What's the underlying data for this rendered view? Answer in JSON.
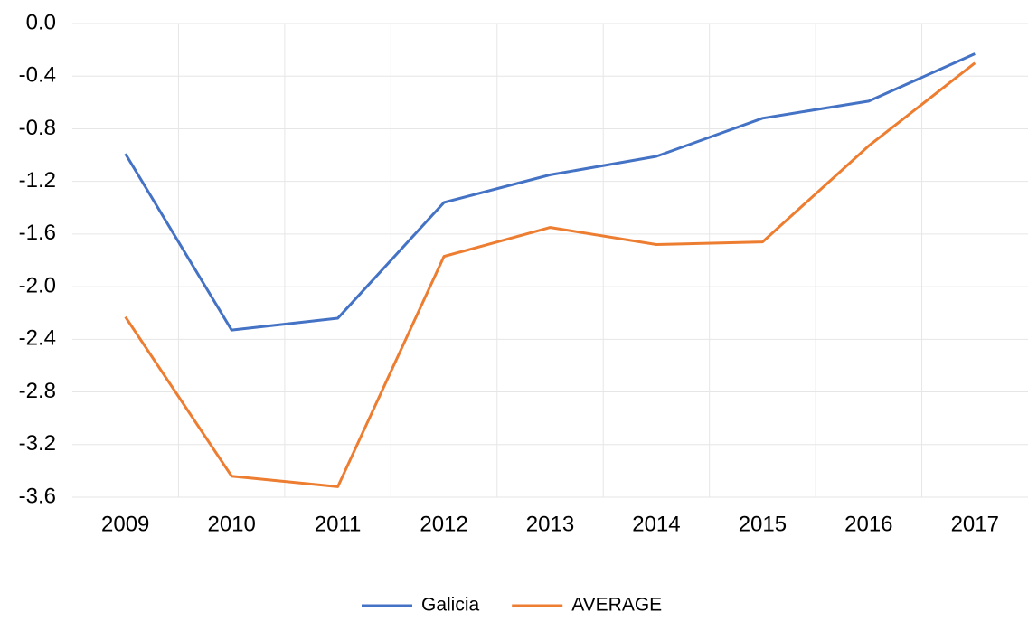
{
  "chart_data": {
    "type": "line",
    "categories": [
      "2009",
      "2010",
      "2011",
      "2012",
      "2013",
      "2014",
      "2015",
      "2016",
      "2017"
    ],
    "series": [
      {
        "name": "Galicia",
        "color": "#4472c4",
        "values": [
          -0.99,
          -2.33,
          -2.24,
          -1.36,
          -1.15,
          -1.01,
          -0.72,
          -0.59,
          -0.23
        ]
      },
      {
        "name": "AVERAGE",
        "color": "#ed7d31",
        "values": [
          -2.23,
          -3.44,
          -3.52,
          -1.77,
          -1.55,
          -1.68,
          -1.66,
          -0.93,
          -0.3
        ]
      }
    ],
    "ylim": [
      -3.6,
      0
    ],
    "yticks": [
      {
        "value": 0,
        "label": "0.0"
      },
      -0.4,
      -0.8,
      -1.2,
      -1.6,
      {
        "value": -2,
        "label": "-2.0"
      },
      -2.4,
      -2.8,
      -3.2,
      -3.6
    ],
    "grid": true,
    "legend": "bottom"
  }
}
